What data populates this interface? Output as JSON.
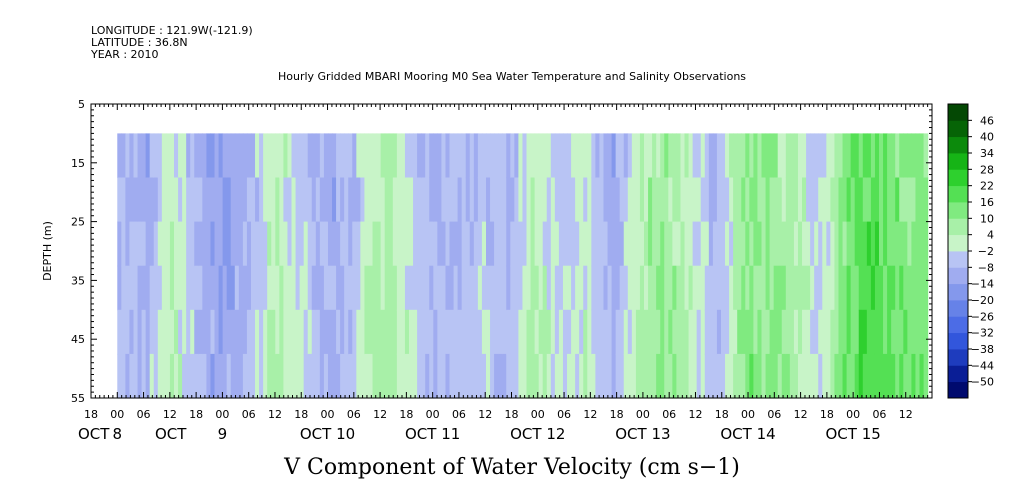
{
  "header": {
    "longitude": "LONGITUDE : 121.9W(-121.9)",
    "latitude": "LATITUDE : 36.8N",
    "year": "YEAR : 2010"
  },
  "chart_data": {
    "type": "heatmap",
    "title": "Hourly Gridded MBARI Mooring M0 Sea Water Temperature and Salinity Observations",
    "xlabel": "V Component of Water Velocity (cm s−1)",
    "ylabel": "DEPTH (m)",
    "ylim": [
      5,
      55
    ],
    "y_inverted": true,
    "y_ticks": [
      5,
      15,
      25,
      35,
      45,
      55
    ],
    "x_range_hours_label": "OCT 7 18:00 to OCT 15 18:00 (2010)",
    "x_tick_labels": [
      "18",
      "00",
      "06",
      "12",
      "18",
      "00",
      "06",
      "12",
      "18",
      "00",
      "06",
      "12",
      "18",
      "00",
      "06",
      "12",
      "18",
      "00",
      "06",
      "12",
      "18",
      "00",
      "06",
      "12",
      "18",
      "00",
      "06",
      "12",
      "18",
      "00",
      "06",
      "12"
    ],
    "x_day_labels": [
      "OCT",
      "8",
      "OCT",
      "9",
      "OCT 10",
      "OCT 11",
      "OCT 12",
      "OCT 13",
      "OCT 14",
      "OCT 15"
    ],
    "data_extent": {
      "time_start": "OCT 8 00:00",
      "time_end": "OCT 15 ~17:00",
      "depth_top": 10,
      "depth_bottom": 55
    },
    "colorbar": {
      "levels": [
        -50,
        -44,
        -38,
        -32,
        -26,
        -20,
        -14,
        -8,
        -2,
        4,
        10,
        16,
        22,
        28,
        34,
        40,
        46
      ],
      "tick_labels": [
        "46",
        "40",
        "34",
        "28",
        "22",
        "16",
        "10",
        "4",
        "−2",
        "−8",
        "−14",
        "−20",
        "−26",
        "−32",
        "−38",
        "−44",
        "−50"
      ],
      "colors": [
        "#000a6e",
        "#0a1e96",
        "#1e3cbe",
        "#3256dc",
        "#4c6ce6",
        "#6682e8",
        "#8498ec",
        "#a0acf0",
        "#b8c4f4",
        "#c8f4c8",
        "#a8f0a8",
        "#80ea80",
        "#54e054",
        "#2ed02e",
        "#16b416",
        "#0c8a0c",
        "#066406",
        "#044804"
      ]
    },
    "columns": [
      {
        "t": 0,
        "v": -6
      },
      {
        "t": 6,
        "v": -10
      },
      {
        "t": 12,
        "v": 4
      },
      {
        "t": 18,
        "v": -8
      },
      {
        "t": 24,
        "v": -14
      },
      {
        "t": 30,
        "v": -8
      },
      {
        "t": 36,
        "v": 6
      },
      {
        "t": 42,
        "v": -4
      },
      {
        "t": 48,
        "v": -10
      },
      {
        "t": 54,
        "v": -6
      },
      {
        "t": 60,
        "v": 8
      },
      {
        "t": 66,
        "v": 2
      },
      {
        "t": 72,
        "v": -10
      },
      {
        "t": 78,
        "v": -6
      },
      {
        "t": 84,
        "v": -4
      },
      {
        "t": 90,
        "v": -8
      },
      {
        "t": 96,
        "v": 6
      },
      {
        "t": 102,
        "v": -4
      },
      {
        "t": 108,
        "v": 2
      },
      {
        "t": 114,
        "v": -12
      },
      {
        "t": 120,
        "v": 6
      },
      {
        "t": 126,
        "v": 10
      },
      {
        "t": 132,
        "v": 2
      },
      {
        "t": 138,
        "v": -8
      },
      {
        "t": 144,
        "v": 12
      },
      {
        "t": 150,
        "v": 10
      },
      {
        "t": 156,
        "v": 6
      },
      {
        "t": 162,
        "v": -4
      },
      {
        "t": 168,
        "v": 16
      },
      {
        "t": 174,
        "v": 20
      },
      {
        "t": 180,
        "v": 14
      },
      {
        "t": 186,
        "v": 12
      }
    ]
  }
}
